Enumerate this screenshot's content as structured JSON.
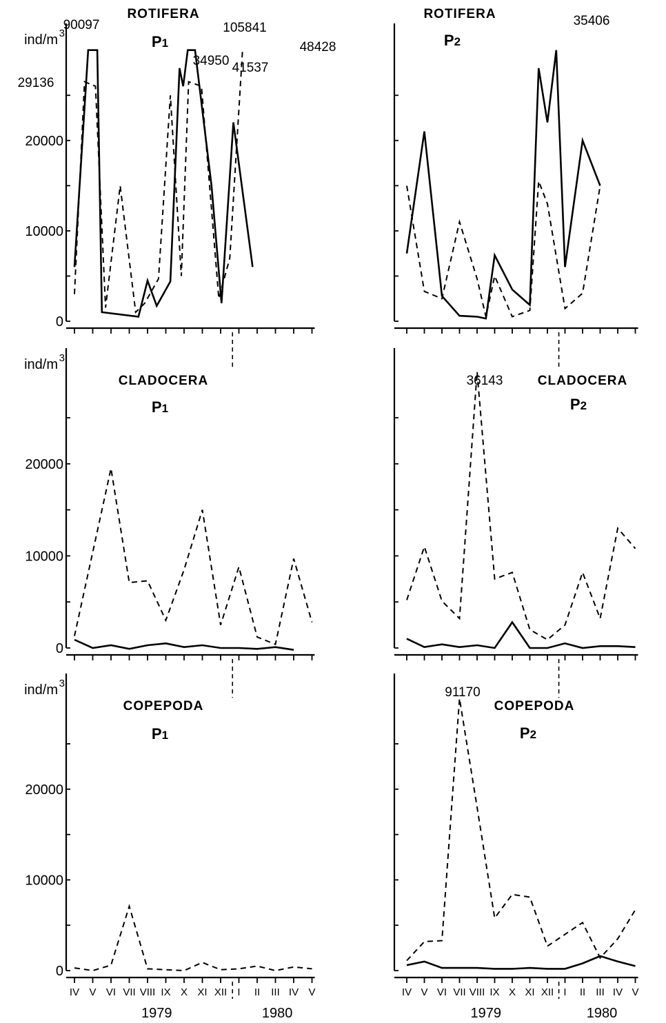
{
  "months": [
    "IV",
    "V",
    "VI",
    "VII",
    "VIII",
    "IX",
    "X",
    "XI",
    "XII",
    "I",
    "II",
    "III",
    "IV",
    "V"
  ],
  "year_labels": [
    "1979",
    "1980"
  ],
  "unit_label": "ind/m",
  "unit_exponent": "3",
  "y_tick_labels": [
    "0",
    "10000",
    "20000"
  ],
  "chart_data": [
    {
      "type": "line",
      "title": "ROTIFERA",
      "subtitle": "P1",
      "ylabel": "ind/m3",
      "ylim": [
        0,
        30000
      ],
      "categories": [
        "IV",
        "V",
        "VI",
        "VII",
        "VIII",
        "IX",
        "X",
        "XI",
        "XII",
        "I",
        "II",
        "III",
        "IV",
        "V",
        "VI",
        "VII",
        "VIII",
        "IX",
        "X",
        "XI",
        "XII",
        "I",
        "II",
        "III",
        "IV",
        "V"
      ],
      "note": "",
      "x": [
        0,
        0.8,
        1.3,
        2,
        3,
        4,
        4.8,
        5.6,
        6.4,
        7.2,
        8,
        8.6,
        8.9,
        9.2,
        9.6,
        10,
        10.5,
        11,
        11.4,
        12,
        12.5,
        13
      ],
      "series": [
        {
          "name": "",
          "style": "solid",
          "points": [
            [
              0,
              6000
            ],
            [
              0.75,
              30000
            ],
            [
              1.25,
              30000
            ],
            [
              1.5,
              1000
            ],
            [
              3.5,
              500
            ],
            [
              4,
              4500
            ],
            [
              4.5,
              1700
            ],
            [
              5.25,
              4400
            ],
            [
              5.75,
              28000
            ],
            [
              5.95,
              26000
            ],
            [
              6.2,
              30000
            ],
            [
              6.6,
              30000
            ],
            [
              7.5,
              15000
            ],
            [
              8.05,
              2000
            ],
            [
              8.7,
              22000
            ],
            [
              9.75,
              6000
            ]
          ]
        },
        {
          "name": "",
          "style": "dashed",
          "points": [
            [
              0,
              3000
            ],
            [
              0.55,
              26500
            ],
            [
              1.15,
              26000
            ],
            [
              1.7,
              1500
            ],
            [
              2.5,
              15000
            ],
            [
              3.35,
              1000
            ],
            [
              3.85,
              2000
            ],
            [
              4.6,
              4700
            ],
            [
              5.25,
              25000
            ],
            [
              5.85,
              5000
            ],
            [
              6.25,
              26500
            ],
            [
              6.95,
              26000
            ],
            [
              7.9,
              2500
            ],
            [
              8.5,
              7000
            ],
            [
              9.2,
              30000
            ]
          ]
        }
      ],
      "annotations": [
        {
          "text": "29136",
          "x": 0.55,
          "y": 29136
        },
        {
          "text": "90097",
          "x": 1.0,
          "y": 90097
        },
        {
          "text": "34950",
          "x": 5.7,
          "y": 34950
        },
        {
          "text": "105841",
          "x": 6.4,
          "y": 105841
        },
        {
          "text": "41537",
          "x": 6.25,
          "y": 41537
        },
        {
          "text": "48428",
          "x": 9.2,
          "y": 48428
        }
      ]
    },
    {
      "type": "line",
      "title": "ROTIFERA",
      "subtitle": "P2",
      "ylabel": "",
      "ylim": [
        0,
        30000
      ],
      "categories": [
        "IV",
        "V",
        "VI",
        "VII",
        "VIII",
        "IX",
        "X",
        "XI",
        "XII",
        "I",
        "II",
        "III",
        "IV",
        "V"
      ],
      "series": [
        {
          "name": "",
          "style": "solid",
          "points": [
            [
              0,
              7500
            ],
            [
              1,
              21000
            ],
            [
              2,
              2800
            ],
            [
              3,
              600
            ],
            [
              4,
              500
            ],
            [
              4.5,
              300
            ],
            [
              5,
              7300
            ],
            [
              6,
              3500
            ],
            [
              7,
              1800
            ],
            [
              7.5,
              28000
            ],
            [
              8,
              22000
            ],
            [
              8.5,
              30000
            ],
            [
              9,
              6000
            ],
            [
              10,
              20000
            ],
            [
              11,
              15000
            ]
          ]
        },
        {
          "name": "",
          "style": "dashed",
          "points": [
            [
              0,
              15000
            ],
            [
              1,
              3300
            ],
            [
              2,
              2500
            ],
            [
              3,
              11000
            ],
            [
              4,
              4700
            ],
            [
              4.5,
              500
            ],
            [
              5,
              5000
            ],
            [
              6,
              500
            ],
            [
              7,
              1200
            ],
            [
              7.5,
              15500
            ],
            [
              8,
              13000
            ],
            [
              9,
              1400
            ],
            [
              10,
              3100
            ],
            [
              11,
              15000
            ]
          ]
        }
      ],
      "annotations": [
        {
          "text": "35406",
          "x": 8.5,
          "y": 35406
        }
      ]
    },
    {
      "type": "line",
      "title": "CLADOCERA",
      "subtitle": "P1",
      "ylabel": "ind/m3",
      "ylim": [
        0,
        30000
      ],
      "categories": [
        "IV",
        "V",
        "VI",
        "VII",
        "VIII",
        "IX",
        "X",
        "XI",
        "XII",
        "I",
        "II",
        "III",
        "IV",
        "V"
      ],
      "series": [
        {
          "name": "",
          "style": "solid",
          "points": [
            [
              0,
              900
            ],
            [
              1,
              0
            ],
            [
              2,
              300
            ],
            [
              3,
              -100
            ],
            [
              4,
              300
            ],
            [
              5,
              500
            ],
            [
              6,
              100
            ],
            [
              7,
              300
            ],
            [
              8,
              0
            ],
            [
              9,
              0
            ],
            [
              10,
              -100
            ],
            [
              11,
              100
            ],
            [
              12,
              -200
            ]
          ]
        },
        {
          "name": "",
          "style": "dashed",
          "points": [
            [
              0,
              1300
            ],
            [
              2,
              19500
            ],
            [
              3,
              7100
            ],
            [
              4,
              7300
            ],
            [
              5,
              3000
            ],
            [
              6,
              8500
            ],
            [
              7,
              15000
            ],
            [
              8,
              2500
            ],
            [
              9,
              8800
            ],
            [
              10,
              1200
            ],
            [
              11,
              400
            ],
            [
              12,
              9700
            ],
            [
              13,
              2800
            ]
          ]
        }
      ]
    },
    {
      "type": "line",
      "title": "CLADOCERA",
      "subtitle": "P2",
      "ylabel": "",
      "ylim": [
        0,
        30000
      ],
      "categories": [
        "IV",
        "V",
        "VI",
        "VII",
        "VIII",
        "IX",
        "X",
        "XI",
        "XII",
        "I",
        "II",
        "III",
        "IV",
        "V"
      ],
      "series": [
        {
          "name": "",
          "style": "solid",
          "points": [
            [
              0,
              1000
            ],
            [
              1,
              100
            ],
            [
              2,
              400
            ],
            [
              3,
              100
            ],
            [
              4,
              300
            ],
            [
              5,
              0
            ],
            [
              6,
              2800
            ],
            [
              7,
              0
            ],
            [
              8,
              0
            ],
            [
              9,
              500
            ],
            [
              10,
              0
            ],
            [
              11,
              200
            ],
            [
              12,
              200
            ],
            [
              13,
              100
            ]
          ]
        },
        {
          "name": "",
          "style": "dashed",
          "points": [
            [
              0,
              5200
            ],
            [
              1,
              11000
            ],
            [
              2,
              5100
            ],
            [
              3,
              3200
            ],
            [
              4,
              30000
            ],
            [
              5,
              7500
            ],
            [
              6,
              8200
            ],
            [
              7,
              2000
            ],
            [
              8,
              900
            ],
            [
              9,
              2500
            ],
            [
              10,
              8200
            ],
            [
              11,
              3200
            ],
            [
              12,
              13000
            ],
            [
              13,
              10800
            ]
          ]
        }
      ],
      "annotations": [
        {
          "text": "36143",
          "x": 4,
          "y": 36143
        }
      ]
    },
    {
      "type": "line",
      "title": "COPEPODA",
      "subtitle": "P1",
      "ylabel": "ind/m3",
      "ylim": [
        0,
        30000
      ],
      "categories": [
        "IV",
        "V",
        "VI",
        "VII",
        "VIII",
        "IX",
        "X",
        "XI",
        "XII",
        "I",
        "II",
        "III",
        "IV",
        "V"
      ],
      "series": [
        {
          "name": "",
          "style": "dashed",
          "points": [
            [
              0,
              300
            ],
            [
              1,
              0
            ],
            [
              2,
              600
            ],
            [
              3,
              7100
            ],
            [
              4,
              200
            ],
            [
              5,
              100
            ],
            [
              6,
              0
            ],
            [
              7,
              900
            ],
            [
              8,
              100
            ],
            [
              9,
              200
            ],
            [
              10,
              500
            ],
            [
              11,
              0
            ],
            [
              12,
              400
            ],
            [
              13,
              200
            ]
          ]
        }
      ]
    },
    {
      "type": "line",
      "title": "COPEPODA",
      "subtitle": "P2",
      "ylabel": "",
      "ylim": [
        0,
        30000
      ],
      "categories": [
        "IV",
        "V",
        "VI",
        "VII",
        "VIII",
        "IX",
        "X",
        "XI",
        "XII",
        "I",
        "II",
        "III",
        "IV",
        "V"
      ],
      "series": [
        {
          "name": "",
          "style": "solid",
          "points": [
            [
              0,
              600
            ],
            [
              1,
              1000
            ],
            [
              2,
              300
            ],
            [
              3,
              300
            ],
            [
              4,
              300
            ],
            [
              5,
              200
            ],
            [
              6,
              200
            ],
            [
              7,
              300
            ],
            [
              8,
              200
            ],
            [
              9,
              200
            ],
            [
              10,
              800
            ],
            [
              11,
              1600
            ],
            [
              12,
              1000
            ],
            [
              13,
              500
            ]
          ]
        },
        {
          "name": "",
          "style": "dashed",
          "points": [
            [
              0,
              1100
            ],
            [
              1,
              3200
            ],
            [
              2,
              3300
            ],
            [
              3,
              30000
            ],
            [
              4,
              18000
            ],
            [
              5,
              5800
            ],
            [
              6,
              8400
            ],
            [
              7,
              8100
            ],
            [
              8,
              2700
            ],
            [
              9,
              4000
            ],
            [
              10,
              5300
            ],
            [
              11,
              1400
            ],
            [
              12,
              3500
            ],
            [
              13,
              6700
            ]
          ]
        }
      ],
      "annotations": [
        {
          "text": "91170",
          "x": 3,
          "y": 91170
        }
      ]
    }
  ]
}
